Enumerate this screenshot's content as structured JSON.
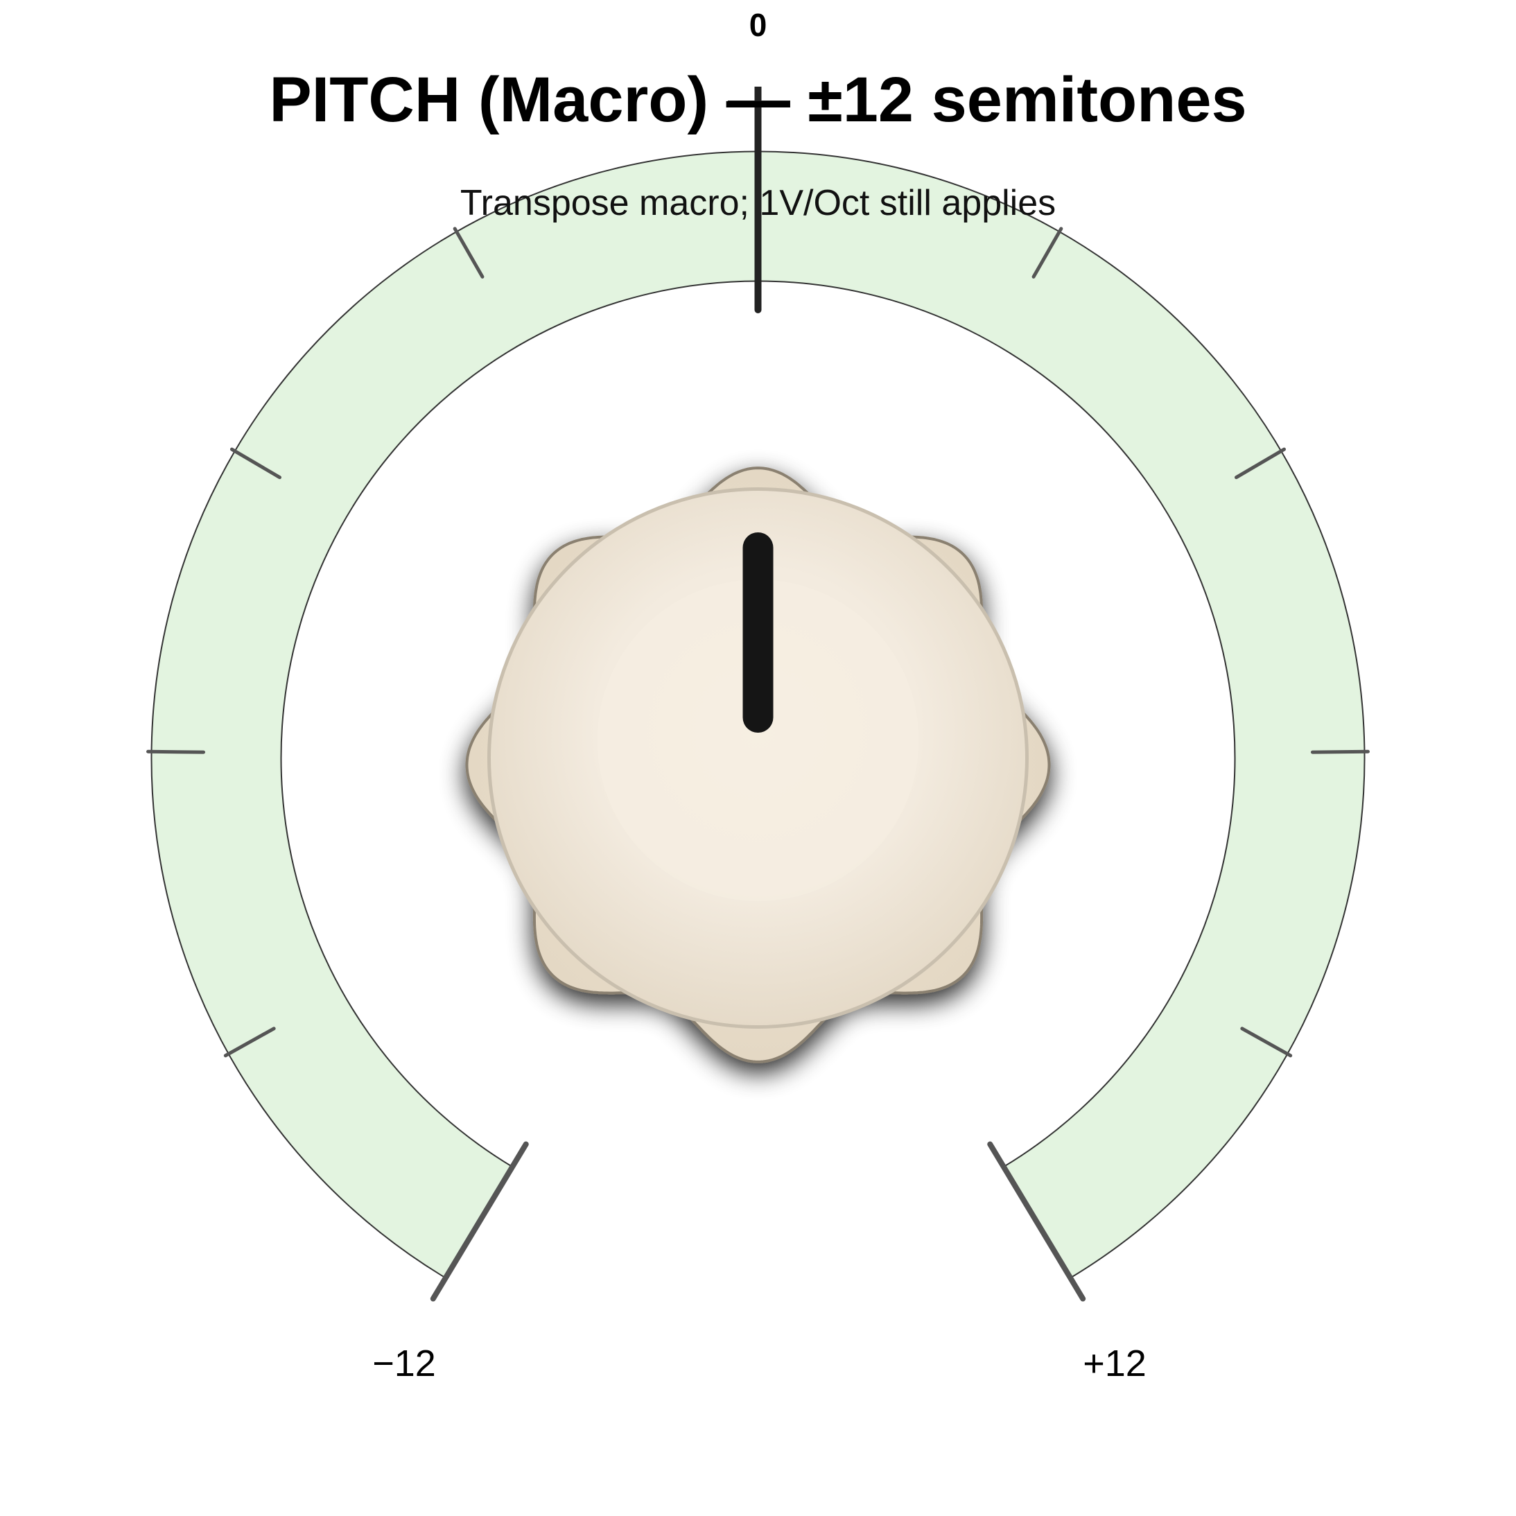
{
  "title": "PITCH (Macro) — ±12 semitones",
  "subtitle": "Transpose macro; 1V/Oct still applies",
  "scale": {
    "center_label": "0",
    "min_label": "−12",
    "max_label": "+12",
    "min_value": -12,
    "max_value": 12,
    "current_value": 0,
    "minor_tick_values": [
      -9,
      -6,
      -3,
      3,
      6,
      9
    ],
    "minor_tick_count_between_labels": 3
  },
  "knob": {
    "style": "cream-scalloped",
    "pointer_value": 0
  },
  "colors": {
    "arc_fill": "#e3f4e0",
    "arc_stroke": "#333333",
    "tick": "#555555",
    "center_tick": "#222222",
    "knob_face": "#efe5d6",
    "knob_edge": "#8a8070",
    "pointer": "#151515",
    "text": "#000000"
  }
}
